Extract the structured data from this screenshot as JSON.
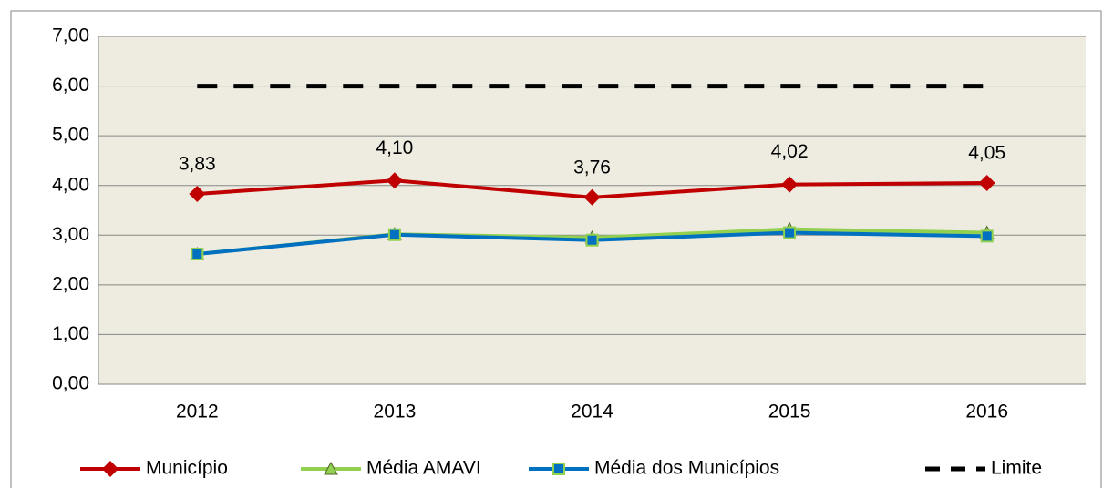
{
  "chart_data": {
    "type": "line",
    "categories": [
      "2012",
      "2013",
      "2014",
      "2015",
      "2016"
    ],
    "series": [
      {
        "name": "Município",
        "color": "#c00000",
        "marker": "diamond",
        "values": [
          3.83,
          4.1,
          3.76,
          4.02,
          4.05
        ],
        "value_labels": [
          "3,83",
          "4,10",
          "3,76",
          "4,02",
          "4,05"
        ]
      },
      {
        "name": "Média AMAVI",
        "color": "#92d050",
        "marker": "triangle",
        "values": [
          2.62,
          3.02,
          2.95,
          3.12,
          3.05
        ]
      },
      {
        "name": "Média dos Municípios",
        "color": "#0070c0",
        "marker": "square",
        "values": [
          2.62,
          3.01,
          2.9,
          3.05,
          2.98
        ]
      },
      {
        "name": "Limite",
        "color": "#000000",
        "dashed": true,
        "values": [
          6,
          6,
          6,
          6,
          6
        ]
      }
    ],
    "ylim": [
      0,
      7
    ],
    "yticks": [
      {
        "value": 0,
        "label": "0,00"
      },
      {
        "value": 1,
        "label": "1,00"
      },
      {
        "value": 2,
        "label": "2,00"
      },
      {
        "value": 3,
        "label": "3,00"
      },
      {
        "value": 4,
        "label": "4,00"
      },
      {
        "value": 5,
        "label": "5,00"
      },
      {
        "value": 6,
        "label": "6,00"
      },
      {
        "value": 7,
        "label": "7,00"
      }
    ],
    "grid": true,
    "legend": "bottom"
  }
}
